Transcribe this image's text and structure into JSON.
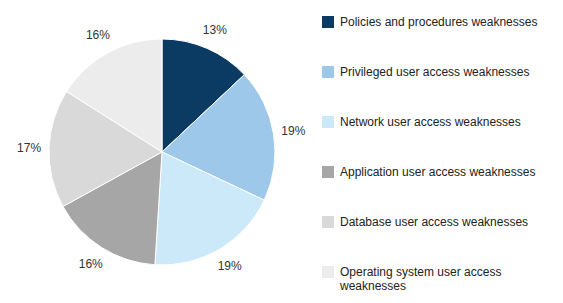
{
  "chart_data": {
    "type": "pie",
    "categories": [
      "Policies and procedures weaknesses",
      "Privileged user access weaknesses",
      "Network user access weaknesses",
      "Application user access weaknesses",
      "Database user access weaknesses",
      "Operating system user access weaknesses"
    ],
    "values": [
      13,
      19,
      19,
      16,
      17,
      16
    ],
    "value_labels": [
      "13%",
      "19%",
      "19%",
      "16%",
      "17%",
      "16%"
    ],
    "colors": [
      "#0b3a63",
      "#9ec8ea",
      "#cbe9f9",
      "#a6a6a6",
      "#d9d9d9",
      "#ececec"
    ],
    "data_labels": true,
    "legend": "right"
  }
}
